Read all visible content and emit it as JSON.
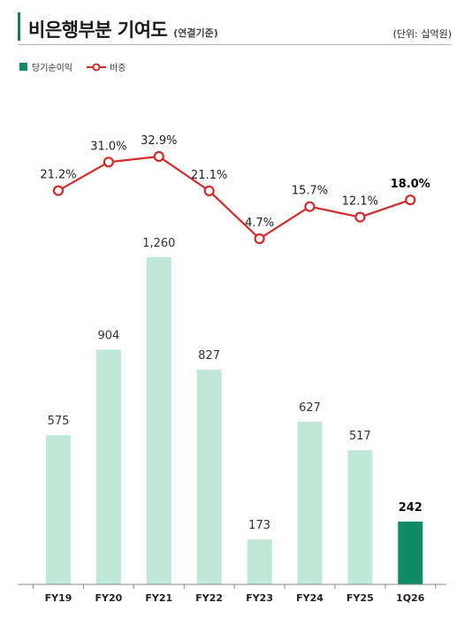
{
  "header": {
    "title": "비은행부분 기여도",
    "title_sub": "(연결기준)",
    "unit": "(단위: 십억원)"
  },
  "legend": {
    "bar_label": "당기순이익",
    "line_label": "비중"
  },
  "colors": {
    "bar": "#bfe8d8",
    "bar_highlight": "#0e8a66",
    "line": "#d42a2a",
    "accent": "#1a7a55"
  },
  "chart_data": {
    "type": "bar",
    "categories": [
      "FY19",
      "FY20",
      "FY21",
      "FY22",
      "FY23",
      "FY24",
      "FY25",
      "1Q26"
    ],
    "series": [
      {
        "name": "당기순이익",
        "type": "bar",
        "values": [
          575,
          904,
          1260,
          827,
          173,
          627,
          517,
          242
        ],
        "labels": [
          "575",
          "904",
          "1,260",
          "827",
          "173",
          "627",
          "517",
          "242"
        ]
      },
      {
        "name": "비중",
        "type": "line",
        "values": [
          21.2,
          31.0,
          32.9,
          21.1,
          4.7,
          15.7,
          12.1,
          18.0
        ],
        "labels": [
          "21.2%",
          "31.0%",
          "32.9%",
          "21.1%",
          "4.7%",
          "15.7%",
          "12.1%",
          "18.0%"
        ]
      }
    ],
    "highlight_index": 7,
    "title": "비은행부분 기여도",
    "xlabel": "",
    "ylabel": "",
    "grid": false,
    "legend_position": "top-left"
  }
}
